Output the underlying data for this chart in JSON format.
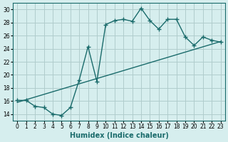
{
  "xlabel": "Humidex (Indice chaleur)",
  "bg_color": "#d6eeee",
  "grid_color": "#b0cccc",
  "line_color": "#1a6b6b",
  "xlim": [
    -0.5,
    23.5
  ],
  "ylim": [
    13,
    31
  ],
  "xticks": [
    0,
    1,
    2,
    3,
    4,
    5,
    6,
    7,
    8,
    9,
    10,
    11,
    12,
    13,
    14,
    15,
    16,
    17,
    18,
    19,
    20,
    21,
    22,
    23
  ],
  "yticks": [
    14,
    16,
    18,
    20,
    22,
    24,
    26,
    28,
    30
  ],
  "curve_x": [
    0,
    1,
    2,
    3,
    4,
    5,
    6,
    7,
    8,
    9,
    10,
    11,
    12,
    13,
    14,
    15,
    16,
    17,
    18,
    19,
    20,
    21,
    22,
    23
  ],
  "curve_y": [
    16.1,
    16.1,
    15.2,
    15.0,
    14.0,
    13.8,
    15.0,
    19.2,
    24.3,
    19.0,
    27.7,
    28.3,
    28.5,
    28.2,
    30.2,
    28.3,
    27.0,
    28.5,
    28.5,
    25.8,
    24.5,
    25.8,
    25.3,
    25.0
  ],
  "line_x": [
    0,
    23
  ],
  "line_y": [
    15.8,
    25.1
  ]
}
